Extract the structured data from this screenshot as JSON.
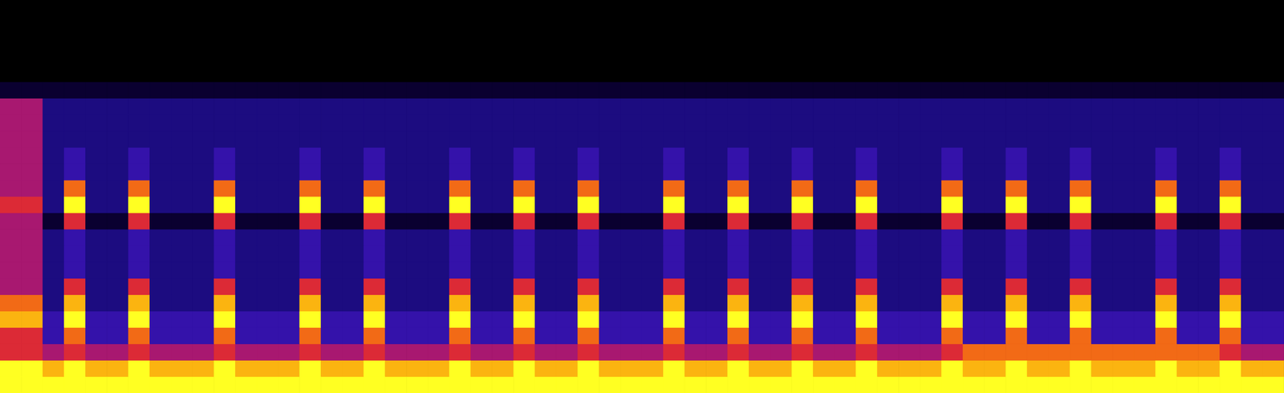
{
  "chart_data": {
    "type": "heatmap",
    "tick_labels": false,
    "zlim": [
      0,
      9
    ],
    "cells": [
      [
        0,
        0,
        0,
        0,
        0,
        0,
        0,
        0,
        0,
        0,
        0,
        0,
        0,
        0,
        0,
        0,
        0,
        0,
        0,
        0,
        0,
        0,
        0,
        0,
        0,
        0,
        0,
        0,
        0,
        0,
        0,
        0,
        0,
        0,
        0,
        0,
        0,
        0,
        0,
        0,
        0,
        0,
        0,
        0,
        0,
        0,
        0,
        0,
        0,
        0,
        0,
        0,
        0,
        0,
        0,
        0,
        0,
        0,
        0,
        0
      ],
      [
        0,
        0,
        0,
        0,
        0,
        0,
        0,
        0,
        0,
        0,
        0,
        0,
        0,
        0,
        0,
        0,
        0,
        0,
        0,
        0,
        0,
        0,
        0,
        0,
        0,
        0,
        0,
        0,
        0,
        0,
        0,
        0,
        0,
        0,
        0,
        0,
        0,
        0,
        0,
        0,
        0,
        0,
        0,
        0,
        0,
        0,
        0,
        0,
        0,
        0,
        0,
        0,
        0,
        0,
        0,
        0,
        0,
        0,
        0,
        0
      ],
      [
        0,
        0,
        0,
        0,
        0,
        0,
        0,
        0,
        0,
        0,
        0,
        0,
        0,
        0,
        0,
        0,
        0,
        0,
        0,
        0,
        0,
        0,
        0,
        0,
        0,
        0,
        0,
        0,
        0,
        0,
        0,
        0,
        0,
        0,
        0,
        0,
        0,
        0,
        0,
        0,
        0,
        0,
        0,
        0,
        0,
        0,
        0,
        0,
        0,
        0,
        0,
        0,
        0,
        0,
        0,
        0,
        0,
        0,
        0,
        0
      ],
      [
        0,
        0,
        0,
        0,
        0,
        0,
        0,
        0,
        0,
        0,
        0,
        0,
        0,
        0,
        0,
        0,
        0,
        0,
        0,
        0,
        0,
        0,
        0,
        0,
        0,
        0,
        0,
        0,
        0,
        0,
        0,
        0,
        0,
        0,
        0,
        0,
        0,
        0,
        0,
        0,
        0,
        0,
        0,
        0,
        0,
        0,
        0,
        0,
        0,
        0,
        0,
        0,
        0,
        0,
        0,
        0,
        0,
        0,
        0,
        0
      ],
      [
        0,
        0,
        0,
        0,
        0,
        0,
        0,
        0,
        0,
        0,
        0,
        0,
        0,
        0,
        0,
        0,
        0,
        0,
        0,
        0,
        0,
        0,
        0,
        0,
        0,
        0,
        0,
        0,
        0,
        0,
        0,
        0,
        0,
        0,
        0,
        0,
        0,
        0,
        0,
        0,
        0,
        0,
        0,
        0,
        0,
        0,
        0,
        0,
        0,
        0,
        0,
        0,
        0,
        0,
        0,
        0,
        0,
        0,
        0,
        0
      ],
      [
        1,
        1,
        1,
        1,
        1,
        1,
        1,
        1,
        1,
        1,
        1,
        1,
        1,
        1,
        1,
        1,
        1,
        1,
        1,
        1,
        1,
        1,
        1,
        1,
        1,
        1,
        1,
        1,
        1,
        1,
        1,
        1,
        1,
        1,
        1,
        1,
        1,
        1,
        1,
        1,
        1,
        1,
        1,
        1,
        1,
        1,
        1,
        1,
        1,
        1,
        1,
        1,
        1,
        1,
        1,
        1,
        1,
        1,
        1,
        1
      ],
      [
        5,
        5,
        2,
        2,
        2,
        2,
        2,
        2,
        2,
        2,
        2,
        2,
        2,
        2,
        2,
        2,
        2,
        2,
        2,
        2,
        2,
        2,
        2,
        2,
        2,
        2,
        2,
        2,
        2,
        2,
        2,
        2,
        2,
        2,
        2,
        2,
        2,
        2,
        2,
        2,
        2,
        2,
        2,
        2,
        2,
        2,
        2,
        2,
        2,
        2,
        2,
        2,
        2,
        2,
        2,
        2,
        2,
        2,
        2,
        2
      ],
      [
        5,
        5,
        2,
        2,
        2,
        2,
        2,
        2,
        2,
        2,
        2,
        2,
        2,
        2,
        2,
        2,
        2,
        2,
        2,
        2,
        2,
        2,
        2,
        2,
        2,
        2,
        2,
        2,
        2,
        2,
        2,
        2,
        2,
        2,
        2,
        2,
        2,
        2,
        2,
        2,
        2,
        2,
        2,
        2,
        2,
        2,
        2,
        2,
        2,
        2,
        2,
        2,
        2,
        2,
        2,
        2,
        2,
        2,
        2,
        2
      ],
      [
        5,
        5,
        2,
        2,
        2,
        2,
        2,
        2,
        2,
        2,
        2,
        2,
        2,
        2,
        2,
        2,
        2,
        2,
        2,
        2,
        2,
        2,
        2,
        2,
        2,
        2,
        2,
        2,
        2,
        2,
        2,
        2,
        2,
        2,
        2,
        2,
        2,
        2,
        2,
        2,
        2,
        2,
        2,
        2,
        2,
        2,
        2,
        2,
        2,
        2,
        2,
        2,
        2,
        2,
        2,
        2,
        2,
        2,
        2,
        2
      ],
      [
        5,
        5,
        2,
        3,
        2,
        2,
        3,
        2,
        2,
        2,
        3,
        2,
        2,
        2,
        3,
        2,
        2,
        3,
        2,
        2,
        2,
        3,
        2,
        2,
        3,
        2,
        2,
        3,
        2,
        2,
        2,
        3,
        2,
        2,
        3,
        2,
        2,
        3,
        2,
        2,
        3,
        2,
        2,
        2,
        3,
        2,
        2,
        3,
        2,
        2,
        3,
        2,
        2,
        2,
        3,
        2,
        2,
        3,
        2,
        2
      ],
      [
        5,
        5,
        2,
        3,
        2,
        2,
        3,
        2,
        2,
        2,
        3,
        2,
        2,
        2,
        3,
        2,
        2,
        3,
        2,
        2,
        2,
        3,
        2,
        2,
        3,
        2,
        2,
        3,
        2,
        2,
        2,
        3,
        2,
        2,
        3,
        2,
        2,
        3,
        2,
        2,
        3,
        2,
        2,
        2,
        3,
        2,
        2,
        3,
        2,
        2,
        3,
        2,
        2,
        2,
        3,
        2,
        2,
        3,
        2,
        2
      ],
      [
        5,
        5,
        2,
        7,
        2,
        2,
        7,
        2,
        2,
        2,
        7,
        2,
        2,
        2,
        7,
        2,
        2,
        7,
        2,
        2,
        2,
        7,
        2,
        2,
        7,
        2,
        2,
        7,
        2,
        2,
        2,
        7,
        2,
        2,
        7,
        2,
        2,
        7,
        2,
        2,
        7,
        2,
        2,
        2,
        7,
        2,
        2,
        7,
        2,
        2,
        7,
        2,
        2,
        2,
        7,
        2,
        2,
        7,
        2,
        2
      ],
      [
        6,
        6,
        2,
        9,
        2,
        2,
        9,
        2,
        2,
        2,
        9,
        2,
        2,
        2,
        9,
        2,
        2,
        9,
        2,
        2,
        2,
        9,
        2,
        2,
        9,
        2,
        2,
        9,
        2,
        2,
        2,
        9,
        2,
        2,
        9,
        2,
        2,
        9,
        2,
        2,
        9,
        2,
        2,
        2,
        9,
        2,
        2,
        9,
        2,
        2,
        9,
        2,
        2,
        2,
        9,
        2,
        2,
        9,
        2,
        2
      ],
      [
        5,
        5,
        1,
        6,
        1,
        1,
        6,
        1,
        1,
        1,
        6,
        1,
        1,
        1,
        6,
        1,
        1,
        6,
        1,
        1,
        1,
        6,
        1,
        1,
        6,
        1,
        1,
        6,
        1,
        1,
        1,
        6,
        1,
        1,
        6,
        1,
        1,
        6,
        1,
        1,
        6,
        1,
        1,
        1,
        6,
        1,
        1,
        6,
        1,
        1,
        6,
        1,
        1,
        1,
        6,
        1,
        1,
        6,
        1,
        1
      ],
      [
        5,
        5,
        2,
        3,
        2,
        2,
        3,
        2,
        2,
        2,
        3,
        2,
        2,
        2,
        3,
        2,
        2,
        3,
        2,
        2,
        2,
        3,
        2,
        2,
        3,
        2,
        2,
        3,
        2,
        2,
        2,
        3,
        2,
        2,
        3,
        2,
        2,
        3,
        2,
        2,
        3,
        2,
        2,
        2,
        3,
        2,
        2,
        3,
        2,
        2,
        3,
        2,
        2,
        2,
        3,
        2,
        2,
        3,
        2,
        2
      ],
      [
        5,
        5,
        2,
        3,
        2,
        2,
        3,
        2,
        2,
        2,
        3,
        2,
        2,
        2,
        3,
        2,
        2,
        3,
        2,
        2,
        2,
        3,
        2,
        2,
        3,
        2,
        2,
        3,
        2,
        2,
        2,
        3,
        2,
        2,
        3,
        2,
        2,
        3,
        2,
        2,
        3,
        2,
        2,
        2,
        3,
        2,
        2,
        3,
        2,
        2,
        3,
        2,
        2,
        2,
        3,
        2,
        2,
        3,
        2,
        2
      ],
      [
        5,
        5,
        2,
        3,
        2,
        2,
        3,
        2,
        2,
        2,
        3,
        2,
        2,
        2,
        3,
        2,
        2,
        3,
        2,
        2,
        2,
        3,
        2,
        2,
        3,
        2,
        2,
        3,
        2,
        2,
        2,
        3,
        2,
        2,
        3,
        2,
        2,
        3,
        2,
        2,
        3,
        2,
        2,
        2,
        3,
        2,
        2,
        3,
        2,
        2,
        3,
        2,
        2,
        2,
        3,
        2,
        2,
        3,
        2,
        2
      ],
      [
        5,
        5,
        2,
        6,
        2,
        2,
        6,
        2,
        2,
        2,
        6,
        2,
        2,
        2,
        6,
        2,
        2,
        6,
        2,
        2,
        2,
        6,
        2,
        2,
        6,
        2,
        2,
        6,
        2,
        2,
        2,
        6,
        2,
        2,
        6,
        2,
        2,
        6,
        2,
        2,
        6,
        2,
        2,
        2,
        6,
        2,
        2,
        6,
        2,
        2,
        6,
        2,
        2,
        2,
        6,
        2,
        2,
        6,
        2,
        2
      ],
      [
        7,
        7,
        2,
        8,
        2,
        2,
        8,
        2,
        2,
        2,
        8,
        2,
        2,
        2,
        8,
        2,
        2,
        8,
        2,
        2,
        2,
        8,
        2,
        2,
        8,
        2,
        2,
        8,
        2,
        2,
        2,
        8,
        2,
        2,
        8,
        2,
        2,
        8,
        2,
        2,
        8,
        2,
        2,
        2,
        8,
        2,
        2,
        8,
        2,
        2,
        8,
        2,
        2,
        2,
        8,
        2,
        2,
        8,
        2,
        2
      ],
      [
        8,
        8,
        3,
        9,
        3,
        3,
        9,
        3,
        3,
        3,
        9,
        3,
        3,
        3,
        9,
        3,
        3,
        9,
        3,
        3,
        3,
        9,
        3,
        3,
        9,
        3,
        3,
        9,
        3,
        3,
        3,
        9,
        3,
        3,
        9,
        3,
        3,
        9,
        3,
        3,
        9,
        3,
        3,
        3,
        9,
        3,
        3,
        9,
        3,
        3,
        9,
        3,
        3,
        3,
        9,
        3,
        3,
        9,
        3,
        3
      ],
      [
        6,
        6,
        3,
        7,
        3,
        3,
        7,
        3,
        3,
        3,
        7,
        3,
        3,
        3,
        7,
        3,
        3,
        7,
        3,
        3,
        3,
        7,
        3,
        3,
        7,
        3,
        3,
        7,
        3,
        3,
        3,
        7,
        3,
        3,
        7,
        3,
        3,
        7,
        3,
        3,
        7,
        3,
        3,
        3,
        7,
        3,
        3,
        7,
        3,
        3,
        7,
        3,
        3,
        3,
        7,
        3,
        3,
        7,
        3,
        3
      ],
      [
        6,
        6,
        5,
        6,
        5,
        5,
        6,
        5,
        5,
        5,
        6,
        5,
        5,
        5,
        6,
        5,
        5,
        6,
        5,
        5,
        5,
        6,
        5,
        5,
        6,
        5,
        5,
        6,
        5,
        5,
        5,
        6,
        5,
        5,
        6,
        5,
        5,
        6,
        5,
        5,
        6,
        5,
        5,
        5,
        6,
        7,
        7,
        7,
        7,
        7,
        7,
        7,
        7,
        7,
        7,
        7,
        7,
        6,
        5,
        5
      ],
      [
        9,
        9,
        8,
        9,
        8,
        8,
        9,
        8,
        8,
        8,
        9,
        8,
        8,
        8,
        9,
        8,
        8,
        9,
        8,
        8,
        8,
        9,
        8,
        8,
        9,
        8,
        8,
        9,
        8,
        8,
        8,
        9,
        8,
        8,
        9,
        8,
        8,
        9,
        8,
        8,
        9,
        8,
        8,
        8,
        9,
        8,
        8,
        9,
        8,
        8,
        9,
        8,
        8,
        8,
        9,
        8,
        8,
        9,
        8,
        8
      ],
      [
        9,
        9,
        9,
        9,
        9,
        9,
        9,
        9,
        9,
        9,
        9,
        9,
        9,
        9,
        9,
        9,
        9,
        9,
        9,
        9,
        9,
        9,
        9,
        9,
        9,
        9,
        9,
        9,
        9,
        9,
        9,
        9,
        9,
        9,
        9,
        9,
        9,
        9,
        9,
        9,
        9,
        9,
        9,
        9,
        9,
        9,
        9,
        9,
        9,
        9,
        9,
        9,
        9,
        9,
        9,
        9,
        9,
        9,
        9,
        9
      ]
    ]
  }
}
